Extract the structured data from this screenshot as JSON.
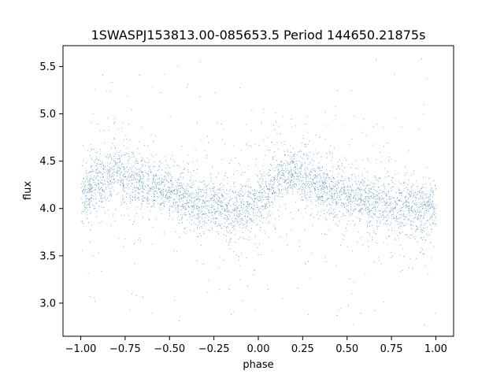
{
  "chart_data": {
    "type": "scatter",
    "title": "1SWASPJ153813.00-085653.5 Period 144650.21875s",
    "xlabel": "phase",
    "ylabel": "flux",
    "xlim": [
      -1.1,
      1.1
    ],
    "ylim": [
      2.65,
      5.72
    ],
    "xticks": [
      -1.0,
      -0.75,
      -0.5,
      -0.25,
      0.0,
      0.25,
      0.5,
      0.75,
      1.0
    ],
    "xtick_labels": [
      "−1.00",
      "−0.75",
      "−0.50",
      "−0.25",
      "0.00",
      "0.25",
      "0.50",
      "0.75",
      "1.00"
    ],
    "yticks": [
      3.0,
      3.5,
      4.0,
      4.5,
      5.0,
      5.5
    ],
    "ytick_labels": [
      "3.0",
      "3.5",
      "4.0",
      "4.5",
      "5.0",
      "5.5"
    ],
    "point_color": "#1f77b4",
    "grid": false,
    "series": [
      {
        "x": [
          -1.0,
          -0.9,
          -0.8,
          -0.7,
          -0.6,
          -0.5,
          -0.4,
          -0.3,
          -0.2,
          -0.1,
          0.0,
          0.1,
          0.2,
          0.3,
          0.4,
          0.5,
          0.6,
          0.7,
          0.8,
          0.9,
          1.0
        ],
        "y": [
          4.15,
          4.3,
          4.38,
          4.32,
          4.25,
          4.18,
          4.1,
          4.05,
          4.0,
          3.98,
          4.05,
          4.28,
          4.38,
          4.3,
          4.2,
          4.12,
          4.08,
          4.05,
          4.02,
          4.0,
          4.02
        ]
      }
    ]
  }
}
